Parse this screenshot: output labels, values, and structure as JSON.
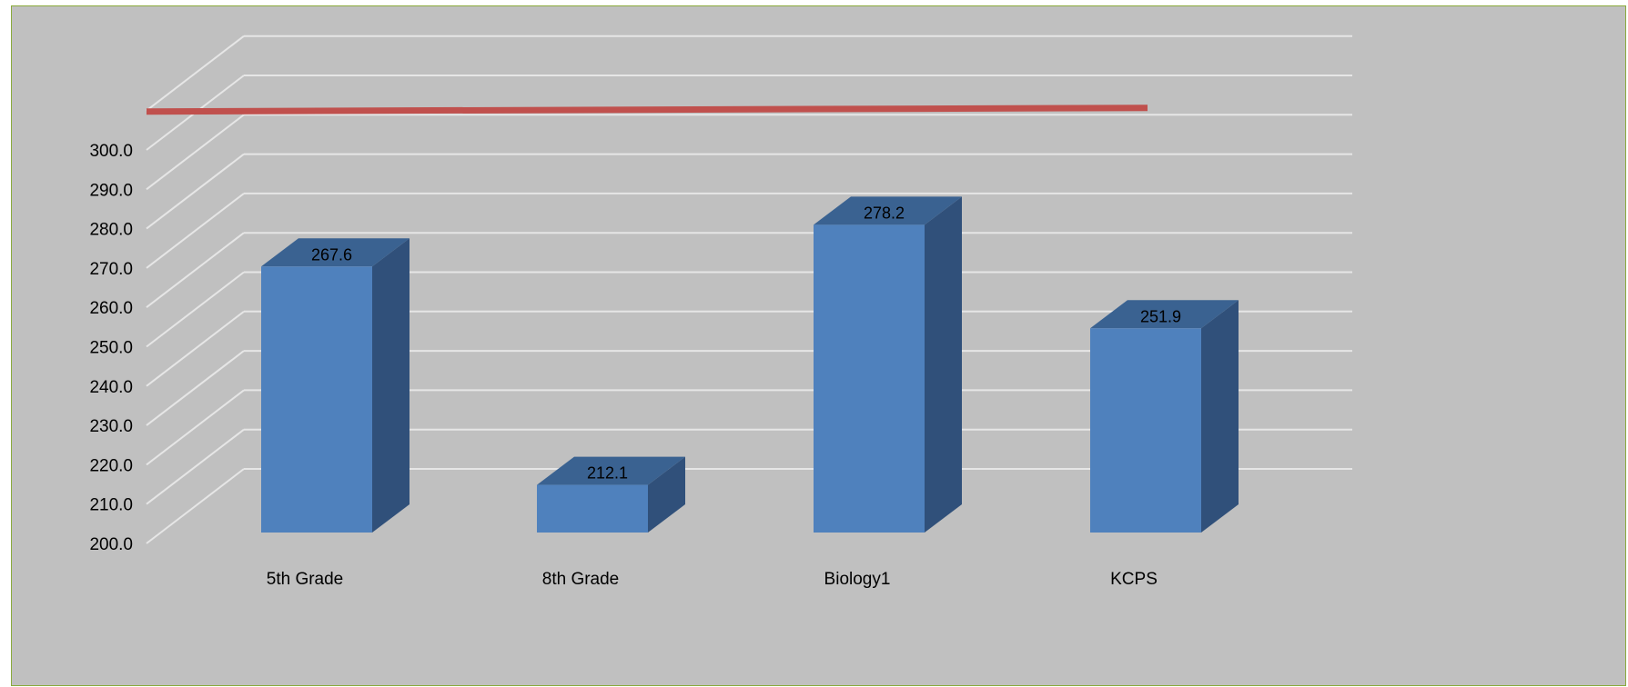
{
  "chart_data": {
    "type": "bar",
    "categories": [
      "5th Grade",
      "8th Grade",
      "Biology1",
      "KCPS"
    ],
    "series": [
      {
        "values": [
          267.6,
          212.1,
          278.2,
          251.9
        ]
      }
    ],
    "data_labels": [
      "267.6",
      "212.1",
      "278.2",
      "251.9"
    ],
    "ylim": [
      200,
      310
    ],
    "yticks": [
      200,
      210,
      220,
      230,
      240,
      250,
      260,
      270,
      280,
      290,
      300
    ],
    "ytick_labels": [
      "200.0",
      "210.0",
      "220.0",
      "230.0",
      "240.0",
      "250.0",
      "260.0",
      "270.0",
      "280.0",
      "290.0",
      "300.0"
    ],
    "reference_line": {
      "value": 310,
      "color": "#c0504d"
    },
    "three_d": true,
    "grid": true,
    "legend": "none",
    "title": "",
    "xlabel": "",
    "ylabel": "",
    "colors": {
      "background": "#c0c0c0",
      "bar_front": "#4f81bd",
      "bar_top": "#3a6291",
      "bar_side": "#30507a",
      "gridline": "#e6e6e6",
      "border": "#8aaa3c"
    }
  }
}
